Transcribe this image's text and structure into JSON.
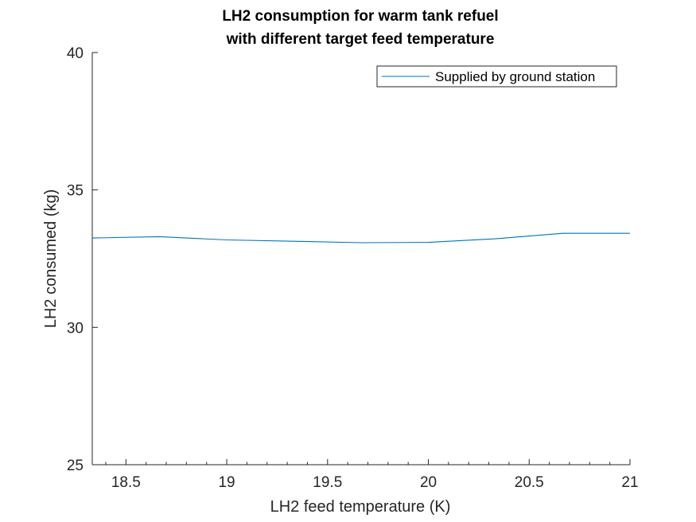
{
  "chart_data": {
    "type": "line",
    "title": [
      "LH2 consumption for warm tank refuel",
      "with different target feed temperature"
    ],
    "xlabel": "LH2 feed temperature (K)",
    "ylabel": "LH2 consumed (kg)",
    "xlim": [
      18.333,
      21
    ],
    "ylim": [
      25,
      40
    ],
    "xticks": [
      18.5,
      19,
      19.5,
      20,
      20.5,
      21
    ],
    "xtick_labels": [
      "18.5",
      "19",
      "19.5",
      "20",
      "20.5",
      "21"
    ],
    "yticks": [
      25,
      30,
      35,
      40
    ],
    "ytick_labels": [
      "25",
      "30",
      "35",
      "40"
    ],
    "grid": false,
    "legend_position": "top-right",
    "series": [
      {
        "name": "Supplied by ground station",
        "color": "#0072BD",
        "x": [
          18.333,
          18.667,
          19.0,
          19.333,
          19.667,
          20.0,
          20.333,
          20.667,
          21.0
        ],
        "y": [
          33.25,
          33.3,
          33.18,
          33.13,
          33.08,
          33.09,
          33.22,
          33.42,
          33.42
        ]
      }
    ]
  }
}
